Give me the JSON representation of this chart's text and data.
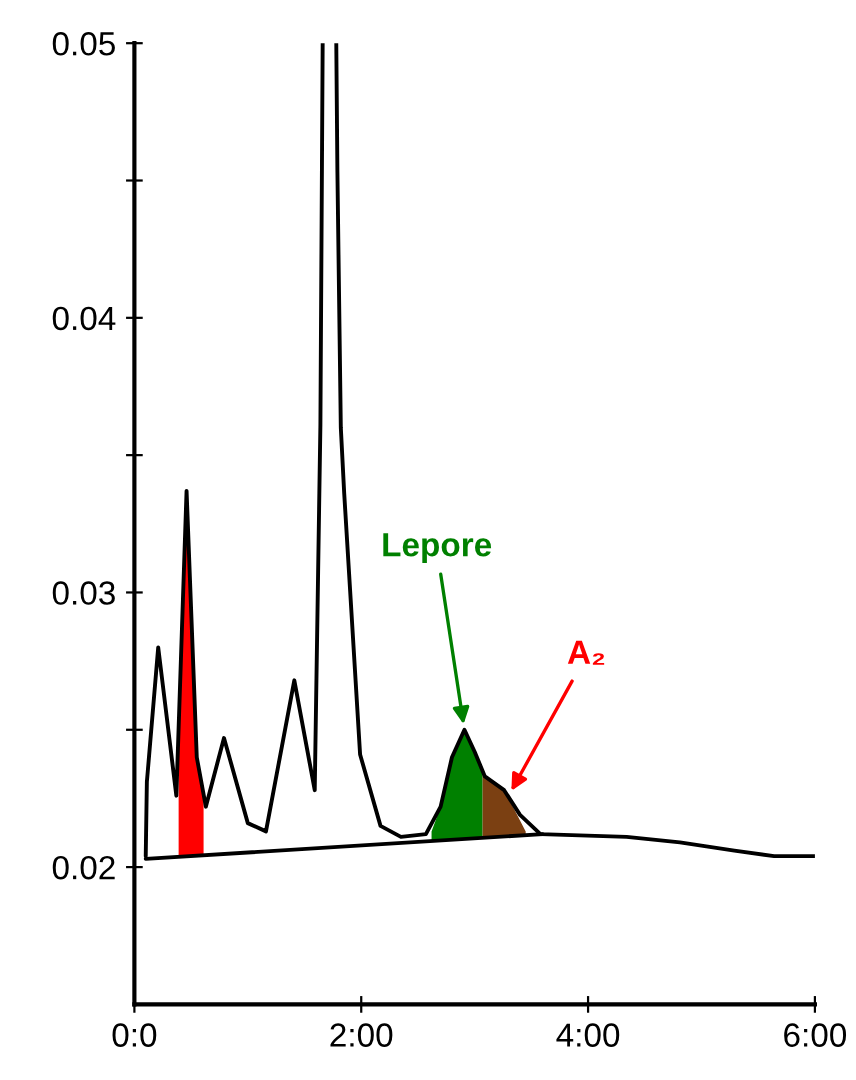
{
  "chart_data": {
    "type": "line",
    "xlim": [
      0,
      6
    ],
    "ylim": [
      0.015,
      0.05
    ],
    "xticks": [
      {
        "value": 0,
        "label": "0:0"
      },
      {
        "value": 2,
        "label": "2:00"
      },
      {
        "value": 4,
        "label": "4:00"
      },
      {
        "value": 6,
        "label": "6:00"
      }
    ],
    "yticks": [
      0.02,
      {
        "value": 0.025,
        "label": null
      },
      0.03,
      {
        "value": 0.035,
        "label": null
      },
      0.04,
      {
        "value": 0.045,
        "label": null
      },
      0.05
    ],
    "grid": false,
    "legend": false,
    "series": [
      {
        "type": "area",
        "color": "#ff0000",
        "x": [
          0.39,
          0.44,
          0.46,
          0.5,
          0.55,
          0.61
        ],
        "values": [
          0.024,
          0.03,
          0.0337,
          0.03,
          0.024,
          0.0225
        ]
      },
      {
        "type": "area",
        "color": "#008000",
        "x": [
          2.62,
          2.7,
          2.8,
          2.91,
          3.0,
          3.07
        ],
        "values": [
          0.0213,
          0.0222,
          0.024,
          0.025,
          0.0242,
          0.0234
        ]
      },
      {
        "type": "area",
        "color": "#7b4012",
        "x": [
          3.07,
          3.18,
          3.26,
          3.35,
          3.45
        ],
        "values": [
          0.0234,
          0.023,
          0.0228,
          0.0221,
          0.0213
        ]
      },
      {
        "color": "#000000",
        "x": [
          0.1,
          3.6
        ],
        "values": [
          0.0203,
          0.0212
        ]
      },
      {
        "color": "#000000",
        "x": [
          0.1,
          0.11,
          0.21,
          0.37,
          0.46,
          0.55,
          0.63,
          0.79,
          1.0,
          1.16,
          1.41,
          1.59,
          1.64,
          1.66,
          1.72,
          1.78,
          1.79,
          1.82,
          1.85,
          1.99,
          2.17,
          2.35,
          2.57,
          2.7,
          2.8,
          2.91,
          3.0,
          3.09,
          3.26,
          3.4,
          3.58,
          4.34,
          4.81,
          5.29,
          5.64,
          6.0
        ],
        "values": [
          0.0204,
          0.0231,
          0.028,
          0.0226,
          0.0337,
          0.024,
          0.0222,
          0.0247,
          0.0216,
          0.0213,
          0.0268,
          0.0228,
          0.0361,
          0.05,
          null,
          0.05,
          0.0453,
          0.036,
          0.0336,
          0.0241,
          0.0215,
          0.0211,
          0.0212,
          0.0222,
          0.024,
          0.025,
          0.0242,
          0.0233,
          0.0228,
          0.0219,
          0.0212,
          0.0211,
          0.0209,
          0.0206,
          0.0204,
          0.0204
        ]
      }
    ],
    "annotations": [
      {
        "text": "Lepore",
        "x": 2.91,
        "y": 0.025
      },
      {
        "text": "A₂",
        "x": 3.3,
        "y": 0.0226
      }
    ]
  }
}
